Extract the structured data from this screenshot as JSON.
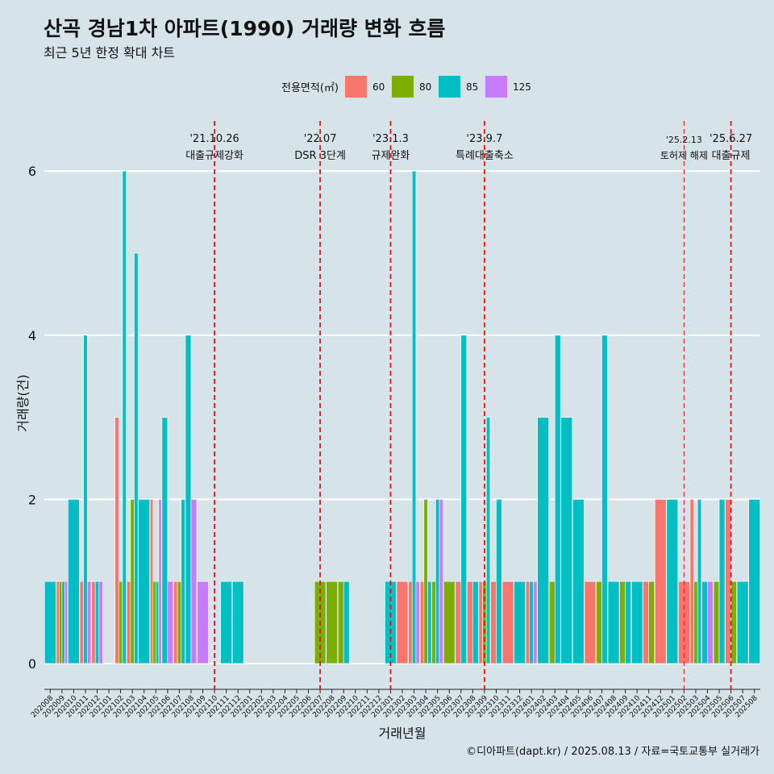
{
  "title": "산곡 경남1차 아파트(1990) 거래량 변화 흐름",
  "subtitle": "최근 5년 한정 확대 차트",
  "caption": "©디아파트(dapt.kr) / 2025.08.13 / 자료=국토교통부 실거래가",
  "colors": {
    "60": "#f8766d",
    "80": "#7cae00",
    "85": "#00bfc4",
    "125": "#c77cff",
    "background": "#d6e4ea",
    "vline": "#ee1111"
  },
  "chart_data": {
    "type": "bar",
    "title": "산곡 경남1차 아파트(1990) 거래량 변화 흐름",
    "subtitle": "최근 5년 한정 확대 차트",
    "xlabel": "거래년월",
    "ylabel": "거래량(건)",
    "ylim": [
      0,
      6
    ],
    "yticks": [
      0,
      2,
      4,
      6
    ],
    "legend_title": "전용면적(㎡)",
    "legend_position": "top",
    "series_names": [
      "60",
      "80",
      "85",
      "125"
    ],
    "categories": [
      "202008",
      "202009",
      "202010",
      "202011",
      "202012",
      "202101",
      "202102",
      "202103",
      "202104",
      "202105",
      "202106",
      "202107",
      "202108",
      "202109",
      "202110",
      "202111",
      "202112",
      "202201",
      "202202",
      "202203",
      "202204",
      "202205",
      "202206",
      "202207",
      "202208",
      "202209",
      "202210",
      "202211",
      "202212",
      "202301",
      "202302",
      "202303",
      "202304",
      "202305",
      "202306",
      "202307",
      "202308",
      "202309",
      "202310",
      "202311",
      "202312",
      "202401",
      "202402",
      "202403",
      "202404",
      "202405",
      "202406",
      "202407",
      "202408",
      "202409",
      "202410",
      "202411",
      "202412",
      "202501",
      "202502",
      "202503",
      "202504",
      "202505",
      "202506",
      "202507",
      "202508"
    ],
    "bars": [
      {
        "cat": "202008",
        "groups": [
          {
            "s": "85",
            "v": 1
          }
        ]
      },
      {
        "cat": "202009",
        "groups": [
          {
            "s": "60",
            "v": 1
          },
          {
            "s": "80",
            "v": 1
          },
          {
            "s": "85",
            "v": 1
          },
          {
            "s": "125",
            "v": 1
          }
        ]
      },
      {
        "cat": "202010",
        "groups": [
          {
            "s": "85",
            "v": 2
          }
        ]
      },
      {
        "cat": "202011",
        "groups": [
          {
            "s": "60",
            "v": 1
          },
          {
            "s": "85",
            "v": 4
          },
          {
            "s": "125",
            "v": 1
          }
        ]
      },
      {
        "cat": "202012",
        "groups": [
          {
            "s": "60",
            "v": 1
          },
          {
            "s": "85",
            "v": 1
          },
          {
            "s": "125",
            "v": 1
          }
        ]
      },
      {
        "cat": "202102",
        "groups": [
          {
            "s": "60",
            "v": 3
          },
          {
            "s": "80",
            "v": 1
          },
          {
            "s": "85",
            "v": 6
          }
        ]
      },
      {
        "cat": "202103",
        "groups": [
          {
            "s": "60",
            "v": 1
          },
          {
            "s": "80",
            "v": 2
          },
          {
            "s": "85",
            "v": 5
          }
        ]
      },
      {
        "cat": "202104",
        "groups": [
          {
            "s": "85",
            "v": 2
          }
        ]
      },
      {
        "cat": "202105",
        "groups": [
          {
            "s": "60",
            "v": 2
          },
          {
            "s": "80",
            "v": 1
          },
          {
            "s": "85",
            "v": 1
          },
          {
            "s": "125",
            "v": 2
          }
        ]
      },
      {
        "cat": "202106",
        "groups": [
          {
            "s": "85",
            "v": 3
          },
          {
            "s": "125",
            "v": 1
          }
        ]
      },
      {
        "cat": "202107",
        "groups": [
          {
            "s": "60",
            "v": 1
          },
          {
            "s": "80",
            "v": 1
          },
          {
            "s": "85",
            "v": 2
          }
        ]
      },
      {
        "cat": "202108",
        "groups": [
          {
            "s": "85",
            "v": 4
          },
          {
            "s": "125",
            "v": 2
          }
        ]
      },
      {
        "cat": "202109",
        "groups": [
          {
            "s": "125",
            "v": 1
          }
        ]
      },
      {
        "cat": "202111",
        "groups": [
          {
            "s": "85",
            "v": 1
          }
        ]
      },
      {
        "cat": "202112",
        "groups": [
          {
            "s": "85",
            "v": 1
          }
        ]
      },
      {
        "cat": "202207",
        "groups": [
          {
            "s": "80",
            "v": 1
          }
        ]
      },
      {
        "cat": "202208",
        "groups": [
          {
            "s": "80",
            "v": 1
          }
        ]
      },
      {
        "cat": "202209",
        "groups": [
          {
            "s": "80",
            "v": 1
          },
          {
            "s": "85",
            "v": 1
          }
        ]
      },
      {
        "cat": "202301",
        "groups": [
          {
            "s": "85",
            "v": 1
          }
        ]
      },
      {
        "cat": "202302",
        "groups": [
          {
            "s": "60",
            "v": 1
          }
        ]
      },
      {
        "cat": "202303",
        "groups": [
          {
            "s": "60",
            "v": 1
          },
          {
            "s": "85",
            "v": 6
          },
          {
            "s": "125",
            "v": 1
          }
        ]
      },
      {
        "cat": "202304",
        "groups": [
          {
            "s": "60",
            "v": 1
          },
          {
            "s": "80",
            "v": 2
          },
          {
            "s": "85",
            "v": 1
          }
        ]
      },
      {
        "cat": "202305",
        "groups": [
          {
            "s": "80",
            "v": 1
          },
          {
            "s": "85",
            "v": 2
          },
          {
            "s": "125",
            "v": 2
          }
        ]
      },
      {
        "cat": "202306",
        "groups": [
          {
            "s": "80",
            "v": 1
          }
        ]
      },
      {
        "cat": "202307",
        "groups": [
          {
            "s": "60",
            "v": 1
          },
          {
            "s": "85",
            "v": 4
          }
        ]
      },
      {
        "cat": "202308",
        "groups": [
          {
            "s": "60",
            "v": 1
          },
          {
            "s": "85",
            "v": 1
          }
        ]
      },
      {
        "cat": "202309",
        "groups": [
          {
            "s": "60",
            "v": 1
          },
          {
            "s": "80",
            "v": 1
          },
          {
            "s": "85",
            "v": 3
          }
        ]
      },
      {
        "cat": "202310",
        "groups": [
          {
            "s": "60",
            "v": 1
          },
          {
            "s": "85",
            "v": 2
          }
        ]
      },
      {
        "cat": "202311",
        "groups": [
          {
            "s": "60",
            "v": 1
          }
        ]
      },
      {
        "cat": "202312",
        "groups": [
          {
            "s": "85",
            "v": 1
          }
        ]
      },
      {
        "cat": "202401",
        "groups": [
          {
            "s": "60",
            "v": 1
          },
          {
            "s": "85",
            "v": 1
          },
          {
            "s": "125",
            "v": 1
          }
        ]
      },
      {
        "cat": "202402",
        "groups": [
          {
            "s": "85",
            "v": 3
          }
        ]
      },
      {
        "cat": "202403",
        "groups": [
          {
            "s": "80",
            "v": 1
          },
          {
            "s": "85",
            "v": 4
          }
        ]
      },
      {
        "cat": "202404",
        "groups": [
          {
            "s": "85",
            "v": 3
          }
        ]
      },
      {
        "cat": "202405",
        "groups": [
          {
            "s": "85",
            "v": 2
          }
        ]
      },
      {
        "cat": "202406",
        "groups": [
          {
            "s": "60",
            "v": 1
          }
        ]
      },
      {
        "cat": "202407",
        "groups": [
          {
            "s": "80",
            "v": 1
          },
          {
            "s": "85",
            "v": 4
          }
        ]
      },
      {
        "cat": "202408",
        "groups": [
          {
            "s": "85",
            "v": 1
          }
        ]
      },
      {
        "cat": "202409",
        "groups": [
          {
            "s": "80",
            "v": 1
          },
          {
            "s": "85",
            "v": 1
          }
        ]
      },
      {
        "cat": "202410",
        "groups": [
          {
            "s": "85",
            "v": 1
          }
        ]
      },
      {
        "cat": "202411",
        "groups": [
          {
            "s": "60",
            "v": 1
          },
          {
            "s": "80",
            "v": 1
          }
        ]
      },
      {
        "cat": "202412",
        "groups": [
          {
            "s": "60",
            "v": 2
          }
        ]
      },
      {
        "cat": "202501",
        "groups": [
          {
            "s": "85",
            "v": 2
          }
        ]
      },
      {
        "cat": "202502",
        "groups": [
          {
            "s": "60",
            "v": 1
          }
        ]
      },
      {
        "cat": "202503",
        "groups": [
          {
            "s": "60",
            "v": 2
          },
          {
            "s": "80",
            "v": 1
          },
          {
            "s": "85",
            "v": 2
          }
        ]
      },
      {
        "cat": "202504",
        "groups": [
          {
            "s": "85",
            "v": 1
          },
          {
            "s": "125",
            "v": 1
          }
        ]
      },
      {
        "cat": "202505",
        "groups": [
          {
            "s": "80",
            "v": 1
          },
          {
            "s": "85",
            "v": 2
          }
        ]
      },
      {
        "cat": "202506",
        "groups": [
          {
            "s": "60",
            "v": 2
          },
          {
            "s": "80",
            "v": 1
          }
        ]
      },
      {
        "cat": "202507",
        "groups": [
          {
            "s": "85",
            "v": 1
          }
        ]
      },
      {
        "cat": "202508",
        "groups": [
          {
            "s": "85",
            "v": 2
          }
        ]
      }
    ],
    "annotations": [
      {
        "after": "202110",
        "date": "'21.10.26",
        "label": "대출규제강화",
        "style": "bold"
      },
      {
        "after": "202207",
        "date": "'22.07",
        "label": "DSR 3단계",
        "style": "bold"
      },
      {
        "after": "202301",
        "date": "'23.1.3",
        "label": "규제완화",
        "style": "bold"
      },
      {
        "after": "202309",
        "date": "'23.9.7",
        "label": "특례대출축소",
        "style": "bold"
      },
      {
        "after": "202502",
        "date": "'25.2.13",
        "label": "토허제 해제",
        "style": "thin"
      },
      {
        "after": "202506",
        "date": "'25.6.27",
        "label": "대출규제",
        "style": "bold"
      }
    ]
  }
}
